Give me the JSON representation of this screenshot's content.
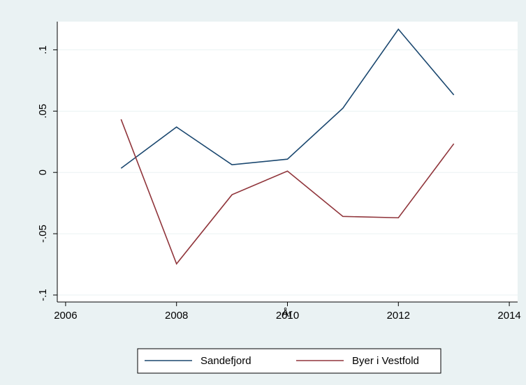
{
  "chart_data": {
    "type": "line",
    "x_label": "År",
    "x": [
      2007,
      2008,
      2009,
      2010,
      2011,
      2012,
      2013
    ],
    "series": [
      {
        "name": "Sandefjord",
        "color": "#1a476f",
        "values": [
          0.0034,
          0.037,
          0.0063,
          0.0108,
          0.0524,
          0.1168,
          0.0632
        ]
      },
      {
        "name": "Byer i Vestfold",
        "color": "#90353b",
        "values": [
          0.0433,
          -0.0746,
          -0.0182,
          0.0011,
          -0.0359,
          -0.037,
          0.0234
        ]
      }
    ],
    "xlim": [
      2005.85,
      2014.15
    ],
    "xticks": [
      2006,
      2008,
      2010,
      2012,
      2014
    ],
    "ylim": [
      -0.1057,
      0.123
    ],
    "yticks": [
      {
        "value": -0.1,
        "label": "-.1"
      },
      {
        "value": -0.05,
        "label": "-.05"
      },
      0,
      {
        "value": 0.05,
        "label": ".05"
      },
      {
        "value": 0.1,
        "label": ".1"
      }
    ],
    "grid": true,
    "legend": "bottom"
  }
}
